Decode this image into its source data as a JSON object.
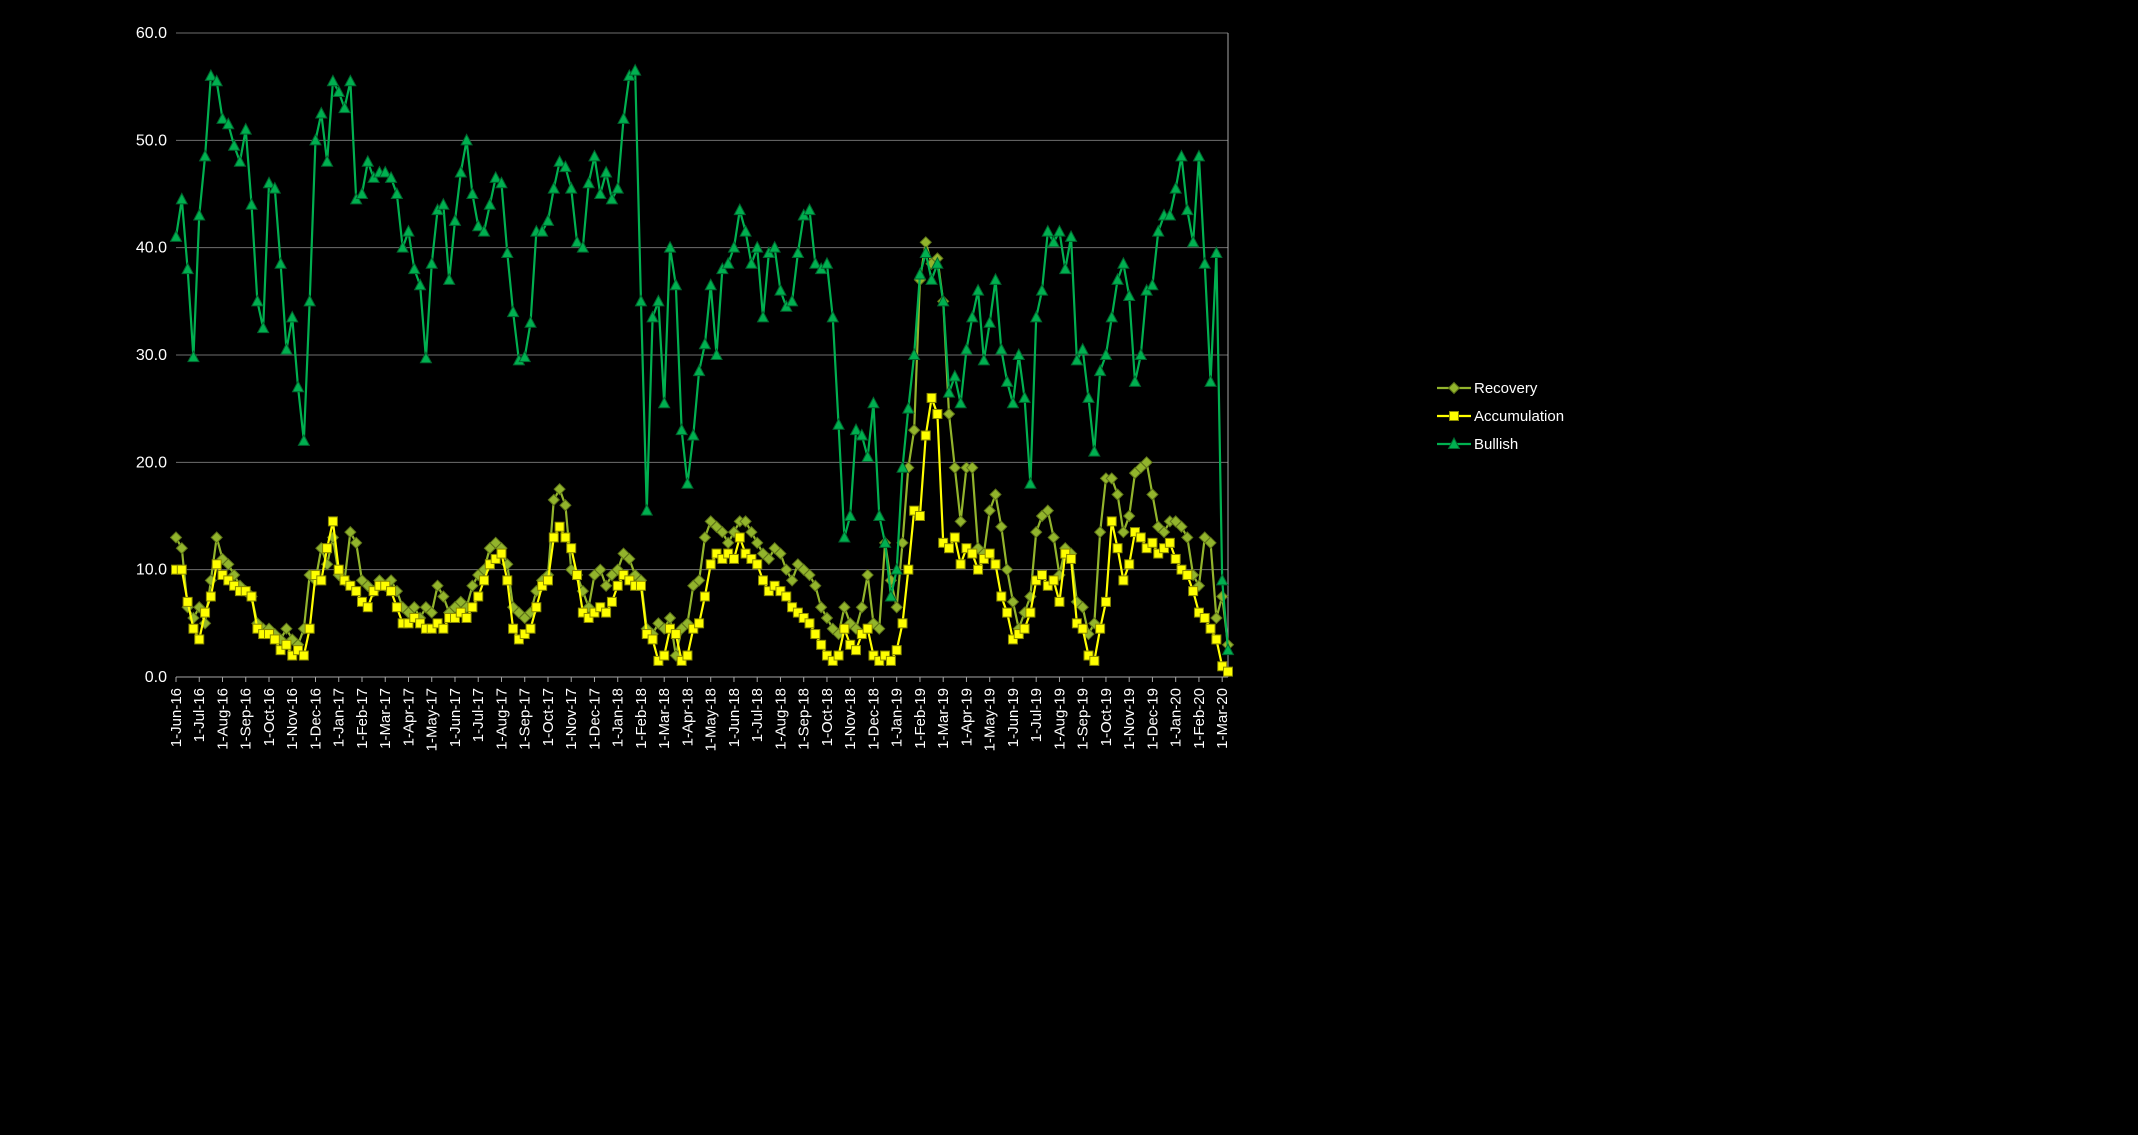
{
  "page": {
    "background": "#000000",
    "axis_text_color": "#ffffff",
    "gridline_color": "#6e6e6e",
    "axis_line_color": "#a6a6a6"
  },
  "chart_data": {
    "type": "line",
    "title": "",
    "xlabel": "",
    "ylabel": "",
    "ylim": [
      0,
      60
    ],
    "y_tick_step": 10,
    "y_tick_labels": [
      "0.0",
      "10.0",
      "20.0",
      "30.0",
      "40.0",
      "50.0",
      "60.0"
    ],
    "grid": "horizontal",
    "legend_position": "right",
    "x_tick_every": 4,
    "x_tick_labels": [
      "1-Jun-16",
      "1-Jul-16",
      "1-Aug-16",
      "1-Sep-16",
      "1-Oct-16",
      "1-Nov-16",
      "1-Dec-16",
      "1-Jan-17",
      "1-Feb-17",
      "1-Mar-17",
      "1-Apr-17",
      "1-May-17",
      "1-Jun-17",
      "1-Jul-17",
      "1-Aug-17",
      "1-Sep-17",
      "1-Oct-17",
      "1-Nov-17",
      "1-Dec-17",
      "1-Jan-18",
      "1-Feb-18",
      "1-Mar-18",
      "1-Apr-18",
      "1-May-18",
      "1-Jun-18",
      "1-Jul-18",
      "1-Aug-18",
      "1-Sep-18",
      "1-Oct-18",
      "1-Nov-18",
      "1-Dec-18",
      "1-Jan-19",
      "1-Feb-19",
      "1-Mar-19",
      "1-Apr-19",
      "1-May-19",
      "1-Jun-19",
      "1-Jul-19",
      "1-Aug-19",
      "1-Sep-19",
      "1-Oct-19",
      "1-Nov-19",
      "1-Dec-19",
      "1-Jan-20",
      "1-Feb-20",
      "1-Mar-20"
    ],
    "series": [
      {
        "name": "Recovery",
        "marker": "diamond",
        "color": "#92b42c",
        "outline": "#5d7318",
        "values": [
          13,
          12,
          6.5,
          5.5,
          6.5,
          5,
          9,
          13,
          11,
          10.5,
          9.5,
          8.5,
          8,
          7.5,
          5,
          4.5,
          4.5,
          4,
          3.5,
          4.5,
          3.5,
          3,
          4.5,
          9.5,
          9,
          12,
          10.5,
          13,
          9.5,
          9,
          13.5,
          12.5,
          9,
          8.5,
          8,
          9,
          8.5,
          9,
          8,
          6.5,
          6,
          6.5,
          5.5,
          6.5,
          6,
          8.5,
          7.5,
          6,
          6.5,
          7,
          6.5,
          8.5,
          9.5,
          10,
          12,
          12.5,
          12,
          10.5,
          6.5,
          6,
          5.5,
          6,
          8,
          9,
          9.5,
          16.5,
          17.5,
          16,
          10,
          9.5,
          8,
          6.5,
          9.5,
          10,
          8.5,
          9.5,
          10,
          11.5,
          11,
          9.5,
          9,
          4.5,
          4,
          5,
          4.5,
          5.5,
          2,
          4.5,
          5,
          8.5,
          9,
          13,
          14.5,
          14,
          13.5,
          12.5,
          13.5,
          14.5,
          14.5,
          13.5,
          12.5,
          11.5,
          11,
          12,
          11.5,
          10,
          9,
          10.5,
          10,
          9.5,
          8.5,
          6.5,
          5.5,
          4.5,
          4,
          6.5,
          5,
          4.5,
          6.5,
          9.5,
          5,
          4.5,
          12.5,
          9,
          6.5,
          12.5,
          19.5,
          23,
          37,
          40.5,
          38.5,
          39,
          35,
          24.5,
          19.5,
          14.5,
          19.5,
          19.5,
          12,
          11.5,
          15.5,
          17,
          14,
          10,
          7,
          4.5,
          6,
          7.5,
          13.5,
          15,
          15.5,
          13,
          9.5,
          12,
          11.5,
          7,
          6.5,
          4,
          5,
          13.5,
          18.5,
          18.5,
          17,
          13.5,
          15,
          19,
          19.5,
          20,
          17,
          14,
          13.5,
          14.5,
          14.5,
          14,
          13,
          9.5,
          8.5,
          13,
          12.5,
          5.5,
          7.5,
          3
        ]
      },
      {
        "name": "Accumulation",
        "marker": "square",
        "color": "#ffff00",
        "outline": "#8a8a00",
        "values": [
          10,
          10,
          7,
          4.5,
          3.5,
          6,
          7.5,
          10.5,
          9.5,
          9,
          8.5,
          8,
          8,
          7.5,
          4.5,
          4,
          4,
          3.5,
          2.5,
          3,
          2,
          2.5,
          2,
          4.5,
          9.5,
          9,
          12,
          14.5,
          10,
          9,
          8.5,
          8,
          7,
          6.5,
          8,
          8.5,
          8.5,
          8,
          6.5,
          5,
          5,
          5.5,
          5,
          4.5,
          4.5,
          5,
          4.5,
          5.5,
          5.5,
          6,
          5.5,
          6.5,
          7.5,
          9,
          10.5,
          11,
          11.5,
          9,
          4.5,
          3.5,
          4,
          4.5,
          6.5,
          8.5,
          9,
          13,
          14,
          13,
          12,
          9.5,
          6,
          5.5,
          6,
          6.5,
          6,
          7,
          8.5,
          9.5,
          9,
          8.5,
          8.5,
          4,
          3.5,
          1.5,
          2,
          4.5,
          4,
          1.5,
          2,
          4.5,
          5,
          7.5,
          10.5,
          11.5,
          11,
          11.5,
          11,
          13,
          11.5,
          11,
          10.5,
          9,
          8,
          8.5,
          8,
          7.5,
          6.5,
          6,
          5.5,
          5,
          4,
          3,
          2,
          1.5,
          2,
          4.5,
          3,
          2.5,
          4,
          4.5,
          2,
          1.5,
          2,
          1.5,
          2.5,
          5,
          10,
          15.5,
          15,
          22.5,
          26,
          24.5,
          12.5,
          12,
          13,
          10.5,
          12,
          11.5,
          10,
          11,
          11.5,
          10.5,
          7.5,
          6,
          3.5,
          4,
          4.5,
          6,
          9,
          9.5,
          8.5,
          9,
          7,
          11.5,
          11,
          5,
          4.5,
          2,
          1.5,
          4.5,
          7,
          14.5,
          12,
          9,
          10.5,
          13.5,
          13,
          12,
          12.5,
          11.5,
          12,
          12.5,
          11,
          10,
          9.5,
          8,
          6,
          5.5,
          4.5,
          3.5,
          1,
          0.5
        ]
      },
      {
        "name": "Bullish",
        "marker": "triangle",
        "color": "#00b050",
        "outline": "#00662e",
        "values": [
          41,
          44.5,
          38,
          29.8,
          43,
          48.5,
          56,
          55.5,
          52,
          51.5,
          49.5,
          48,
          51,
          44,
          35,
          32.5,
          46,
          45.5,
          38.5,
          30.5,
          33.5,
          27,
          22,
          35,
          50,
          52.5,
          48,
          55.5,
          54.5,
          53,
          55.5,
          44.5,
          45,
          48,
          46.5,
          47,
          47,
          46.5,
          45,
          40,
          41.5,
          38,
          36.5,
          29.7,
          38.5,
          43.5,
          44,
          37,
          42.5,
          47,
          50,
          45,
          42,
          41.5,
          44,
          46.5,
          46,
          39.5,
          34,
          29.5,
          29.8,
          33,
          41.5,
          41.5,
          42.5,
          45.5,
          48,
          47.5,
          45.5,
          40.5,
          40,
          46,
          48.5,
          45,
          47,
          44.5,
          45.5,
          52,
          56,
          56.5,
          35,
          15.5,
          33.5,
          35,
          25.5,
          40,
          36.5,
          23,
          18,
          22.5,
          28.5,
          31,
          36.5,
          30,
          38,
          38.5,
          40,
          43.5,
          41.5,
          38.5,
          40,
          33.5,
          39.5,
          40,
          36,
          34.5,
          35,
          39.5,
          43,
          43.5,
          38.5,
          38,
          38.5,
          33.5,
          23.5,
          13,
          15,
          23,
          22.5,
          20.5,
          25.5,
          15,
          12.5,
          7.5,
          10,
          19.5,
          25,
          30,
          37.5,
          39.5,
          37,
          38.5,
          35,
          26.5,
          28,
          25.5,
          30.5,
          33.5,
          36,
          29.5,
          33,
          37,
          30.5,
          27.5,
          25.5,
          30,
          26,
          18,
          33.5,
          36,
          41.5,
          40.5,
          41.5,
          38,
          41,
          29.5,
          30.5,
          26,
          21,
          28.5,
          30,
          33.5,
          37,
          38.5,
          35.5,
          27.5,
          30,
          36,
          36.5,
          41.5,
          43,
          43,
          45.5,
          48.5,
          43.5,
          40.5,
          48.5,
          38.5,
          27.5,
          39.5,
          9,
          2.5
        ]
      }
    ]
  }
}
